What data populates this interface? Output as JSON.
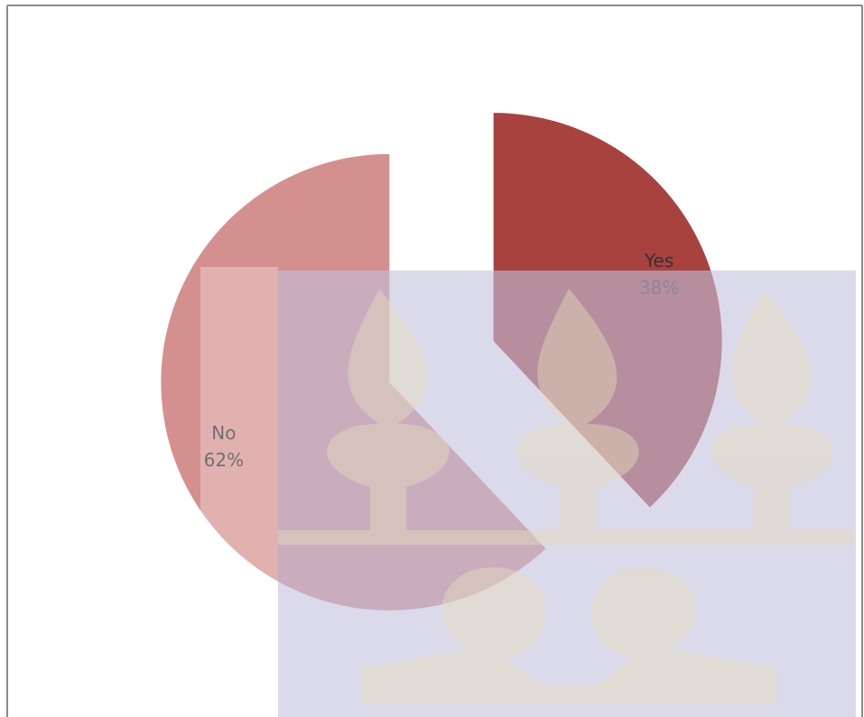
{
  "chart_data": {
    "type": "pie",
    "categories": [
      "Yes",
      "No"
    ],
    "values": [
      38,
      62
    ],
    "value_labels": [
      "38%",
      "62%"
    ],
    "colors": [
      "#a8423f",
      "#d4908e"
    ]
  }
}
